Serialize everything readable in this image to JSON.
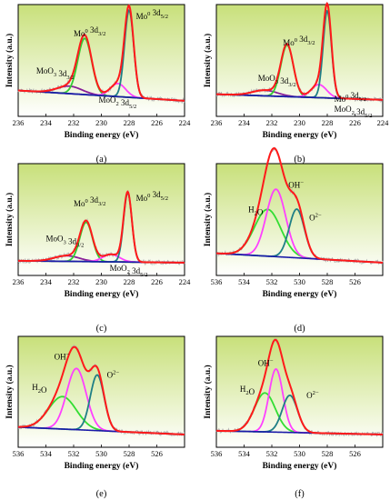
{
  "figure": {
    "colors": {
      "plot_bg_top": "#c8e07a",
      "plot_bg_bottom": "#ffffff",
      "raw_data": "#b0b0b0",
      "envelope": "#ff1a1a",
      "background_line": "#1a1aa8",
      "mo0_52": "#1f7f86",
      "mo0_32": "#33cc33",
      "moo2": "#ff40ff",
      "moo3": "#8a1f99",
      "o2minus": "#1f7f86",
      "ohminus": "#ff40ff",
      "h2o": "#33dd33"
    }
  },
  "chart_data": [
    {
      "type": "line",
      "panel": "(a)",
      "xlabel": "Binding energy (eV)",
      "ylabel": "Intensity (a.u.)",
      "xlim": [
        236,
        224
      ],
      "xticks": [
        "236",
        "234",
        "232",
        "230",
        "228",
        "226",
        "224"
      ],
      "labels": [
        {
          "sub": "MoO3 3d3/2",
          "main": "MoO",
          "sub1": "3",
          "rest": " 3d",
          "sub2": "3/2",
          "ax": 234.7,
          "ay": 0.34
        },
        {
          "sub": "Mo0 3d3/2",
          "main": "Mo",
          "sup1": "0",
          "rest": " 3d",
          "sub2": "3/2",
          "ax": 232.0,
          "ay": 0.74
        },
        {
          "sub": "Mo0 3d5/2",
          "main": "Mo",
          "sup1": "0",
          "rest": " 3d",
          "sub2": "5/2",
          "ax": 227.5,
          "ay": 0.92
        },
        {
          "sub": "MoO2 3d5/2",
          "main": "MoO",
          "sub1": "2",
          "rest": " 3d",
          "sub2": "5/2",
          "ax": 230.2,
          "ay": 0.03
        }
      ],
      "series": [
        {
          "name": "MoO3 3d3/2",
          "key": "moo3",
          "center": 232.3,
          "height": 0.08,
          "width": 0.9
        },
        {
          "name": "Mo0 3d3/2",
          "key": "mo0_32",
          "center": 231.2,
          "height": 0.6,
          "width": 0.5
        },
        {
          "name": "MoO2 3d5/2",
          "key": "moo2",
          "center": 228.8,
          "height": 0.14,
          "width": 0.55
        },
        {
          "name": "Mo0 3d5/2",
          "key": "mo0_52",
          "center": 228.0,
          "height": 0.93,
          "width": 0.33
        }
      ],
      "bg": [
        0.16,
        0.05
      ]
    },
    {
      "type": "line",
      "panel": "(b)",
      "xlabel": "Binding energy (eV)",
      "ylabel": "Intensity (a.u.)",
      "xlim": [
        236,
        224
      ],
      "xticks": [
        "236",
        "234",
        "232",
        "230",
        "228",
        "226",
        "224"
      ],
      "labels": [
        {
          "main": "MoO",
          "sub1": "3",
          "rest": " 3d",
          "sub2": "3/2",
          "ax": 233.0,
          "ay": 0.26
        },
        {
          "main": "Mo",
          "sup1": "0",
          "rest": " 3d",
          "sub2": "3/2",
          "ax": 231.2,
          "ay": 0.64
        },
        {
          "main": "Mo",
          "sup1": "0",
          "rest": " 3d",
          "sub2": "5/2",
          "ax": 227.5,
          "ay": 0.04
        },
        {
          "main": "MoO",
          "sub1": "2",
          "rest": " 3d",
          "sub2": "5/2",
          "ax": 227.5,
          "ay": -0.07
        }
      ],
      "series": [
        {
          "name": "MoO3 3d3/2",
          "key": "moo3",
          "center": 232.5,
          "height": 0.06,
          "width": 0.9
        },
        {
          "name": "Mo0 3d3/2",
          "key": "mo0_32",
          "center": 230.9,
          "height": 0.55,
          "width": 0.45
        },
        {
          "name": "MoO2 3d5/2",
          "key": "moo2",
          "center": 228.6,
          "height": 0.14,
          "width": 0.55
        },
        {
          "name": "Mo0 3d5/2",
          "key": "mo0_52",
          "center": 228.0,
          "height": 0.93,
          "width": 0.3
        }
      ],
      "bg": [
        0.12,
        0.06
      ]
    },
    {
      "type": "line",
      "panel": "(c)",
      "xlabel": "Binding energy (eV)",
      "ylabel": "Intensity (a.u.)",
      "xlim": [
        236,
        224
      ],
      "xticks": [
        "236",
        "234",
        "232",
        "230",
        "228",
        "226",
        "224"
      ],
      "labels": [
        {
          "main": "MoO",
          "sub1": "3",
          "rest": " 3d",
          "sub2": "3/2",
          "ax": 234.0,
          "ay": 0.25
        },
        {
          "main": "Mo",
          "sup1": "0",
          "rest": " 3d",
          "sub2": "3/2",
          "ax": 232.0,
          "ay": 0.62
        },
        {
          "main": "Mo",
          "sup1": "0",
          "rest": " 3d",
          "sub2": "5/2",
          "ax": 227.5,
          "ay": 0.68
        },
        {
          "main": "MoO",
          "sub1": "2",
          "rest": " 3d",
          "sub2": "5/2",
          "ax": 229.4,
          "ay": -0.07
        }
      ],
      "series": [
        {
          "name": "MoO3 3d3/2",
          "key": "moo3",
          "center": 232.5,
          "height": 0.06,
          "width": 0.9
        },
        {
          "name": "Mo0 3d3/2",
          "key": "mo0_32",
          "center": 231.1,
          "height": 0.42,
          "width": 0.45
        },
        {
          "name": "MoO2 3d5/2",
          "key": "moo2",
          "center": 229.3,
          "height": 0.08,
          "width": 0.6
        },
        {
          "name": "Mo0 3d5/2",
          "key": "mo0_52",
          "center": 228.1,
          "height": 0.74,
          "width": 0.3
        }
      ],
      "bg": [
        0.04,
        0.02
      ]
    },
    {
      "type": "line",
      "panel": "(d)",
      "xlabel": "Binding energy (eV)",
      "ylabel": "Intensity (a.u.)",
      "xlim": [
        536,
        524
      ],
      "xticks": [
        "536",
        "534",
        "532",
        "530",
        "528",
        "526"
      ],
      "labels": [
        {
          "main": "H",
          "sub1": "2",
          "rest": "O",
          "ax": 533.7,
          "ay": 0.56
        },
        {
          "main": "OH",
          "sup1": "−",
          "ax": 530.8,
          "ay": 0.82
        },
        {
          "main": "O",
          "sup1": "2−",
          "ax": 529.3,
          "ay": 0.47
        }
      ],
      "series": [
        {
          "name": "H2O",
          "key": "h2o",
          "center": 532.3,
          "height": 0.5,
          "width": 0.95
        },
        {
          "name": "OH−",
          "key": "ohminus",
          "center": 531.7,
          "height": 0.72,
          "width": 0.7
        },
        {
          "name": "O2−",
          "key": "o2minus",
          "center": 530.2,
          "height": 0.52,
          "width": 0.55
        }
      ],
      "bg": [
        0.12,
        0.02
      ]
    },
    {
      "type": "line",
      "panel": "(e)",
      "xlabel": "Binding energy (eV)",
      "ylabel": "Intensity (a.u.)",
      "xlim": [
        536,
        524
      ],
      "xticks": [
        "536",
        "534",
        "532",
        "530",
        "528",
        "526"
      ],
      "labels": [
        {
          "main": "OH",
          "sup1": "−",
          "ax": 533.4,
          "ay": 0.83
        },
        {
          "main": "H",
          "sub1": "2",
          "rest": "O",
          "ax": 535.0,
          "ay": 0.5
        },
        {
          "main": "O",
          "sup1": "2−",
          "ax": 529.6,
          "ay": 0.63
        }
      ],
      "series": [
        {
          "name": "H2O",
          "key": "h2o",
          "center": 532.8,
          "height": 0.35,
          "width": 1.0
        },
        {
          "name": "OH−",
          "key": "ohminus",
          "center": 531.8,
          "height": 0.66,
          "width": 0.7
        },
        {
          "name": "O2−",
          "key": "o2minus",
          "center": 530.3,
          "height": 0.6,
          "width": 0.5
        }
      ],
      "bg": [
        0.1,
        0.02
      ]
    },
    {
      "type": "line",
      "panel": "(f)",
      "xlabel": "Binding energy (eV)",
      "ylabel": "Intensity (a.u.)",
      "xlim": [
        536,
        524
      ],
      "xticks": [
        "536",
        "534",
        "532",
        "530",
        "528",
        "526"
      ],
      "labels": [
        {
          "main": "OH",
          "sup1": "−",
          "ax": 533.0,
          "ay": 0.76
        },
        {
          "main": "H",
          "sub1": "2",
          "rest": "O",
          "ax": 534.3,
          "ay": 0.48
        },
        {
          "main": "O",
          "sup1": "2−",
          "ax": 529.5,
          "ay": 0.41
        }
      ],
      "series": [
        {
          "name": "H2O",
          "key": "h2o",
          "center": 532.5,
          "height": 0.42,
          "width": 0.75
        },
        {
          "name": "OH−",
          "key": "ohminus",
          "center": 531.7,
          "height": 0.68,
          "width": 0.5
        },
        {
          "name": "O2−",
          "key": "o2minus",
          "center": 530.7,
          "height": 0.4,
          "width": 0.55
        }
      ],
      "bg": [
        0.06,
        0.02
      ]
    }
  ]
}
